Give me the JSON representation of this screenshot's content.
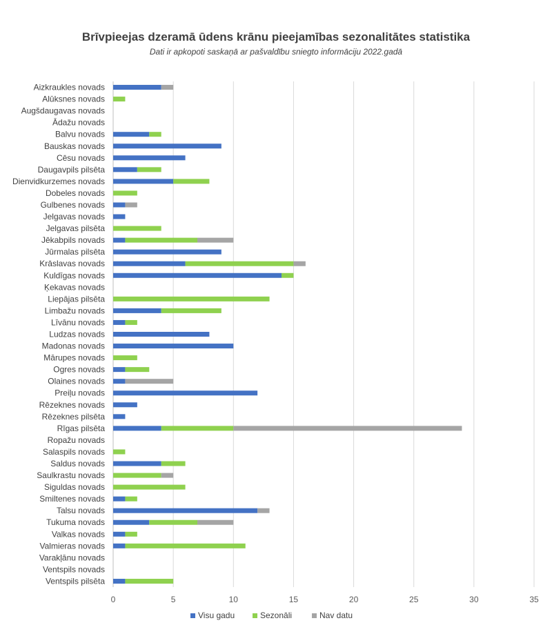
{
  "chart_data": {
    "type": "bar",
    "orientation": "horizontal",
    "stacked": true,
    "title": "Brīvpieejas dzeramā ūdens krānu pieejamības sezonalitātes statistika",
    "subtitle": "Dati ir apkopoti saskaņā ar pašvaldību sniegto informāciju 2022.gadā",
    "xlim": [
      0,
      35
    ],
    "xticks": [
      0,
      5,
      10,
      15,
      20,
      25,
      30,
      35
    ],
    "grid": true,
    "legend_position": "bottom",
    "categories": [
      "Aizkraukles novads",
      "Alūksnes novads",
      "Augšdaugavas novads",
      "Ādažu novads",
      "Balvu novads",
      "Bauskas novads",
      "Cēsu novads",
      "Daugavpils pilsēta",
      "Dienvidkurzemes novads",
      "Dobeles novads",
      "Gulbenes novads",
      "Jelgavas novads",
      "Jelgavas pilsēta",
      "Jēkabpils novads",
      "Jūrmalas pilsēta",
      "Krāslavas novads",
      "Kuldīgas novads",
      "Ķekavas novads",
      "Liepājas pilsēta",
      "Limbažu novads",
      "Līvānu novads",
      "Ludzas novads",
      "Madonas novads",
      "Mārupes novads",
      "Ogres novads",
      "Olaines novads",
      "Preiļu novads",
      "Rēzeknes novads",
      "Rēzeknes pilsēta",
      "Rīgas pilsēta",
      "Ropažu novads",
      "Salaspils novads",
      "Saldus novads",
      "Saulkrastu novads",
      "Siguldas novads",
      "Smiltenes novads",
      "Talsu novads",
      "Tukuma novads",
      "Valkas novads",
      "Valmieras novads",
      "Varakļānu novads",
      "Ventspils novads",
      "Ventspils pilsēta"
    ],
    "series": [
      {
        "name": "Visu gadu",
        "color": "#4472C4",
        "values": [
          4,
          0,
          0,
          0,
          3,
          9,
          6,
          2,
          5,
          0,
          1,
          1,
          0,
          1,
          9,
          6,
          14,
          0,
          0,
          4,
          1,
          8,
          10,
          0,
          1,
          1,
          12,
          2,
          1,
          4,
          0,
          0,
          4,
          0,
          0,
          1,
          12,
          3,
          1,
          1,
          0,
          0,
          1
        ]
      },
      {
        "name": "Sezonāli",
        "color": "#8FD14F",
        "values": [
          0,
          1,
          0,
          0,
          1,
          0,
          0,
          2,
          3,
          2,
          0,
          0,
          4,
          6,
          0,
          9,
          1,
          0,
          13,
          5,
          1,
          0,
          0,
          2,
          2,
          0,
          0,
          0,
          0,
          6,
          0,
          1,
          2,
          4,
          6,
          1,
          0,
          4,
          1,
          10,
          0,
          0,
          4
        ]
      },
      {
        "name": "Nav datu",
        "color": "#A5A5A5",
        "values": [
          1,
          0,
          0,
          0,
          0,
          0,
          0,
          0,
          0,
          0,
          1,
          0,
          0,
          3,
          0,
          1,
          0,
          0,
          0,
          0,
          0,
          0,
          0,
          0,
          0,
          4,
          0,
          0,
          0,
          19,
          0,
          0,
          0,
          1,
          0,
          0,
          1,
          3,
          0,
          0,
          0,
          0,
          0
        ]
      }
    ]
  }
}
